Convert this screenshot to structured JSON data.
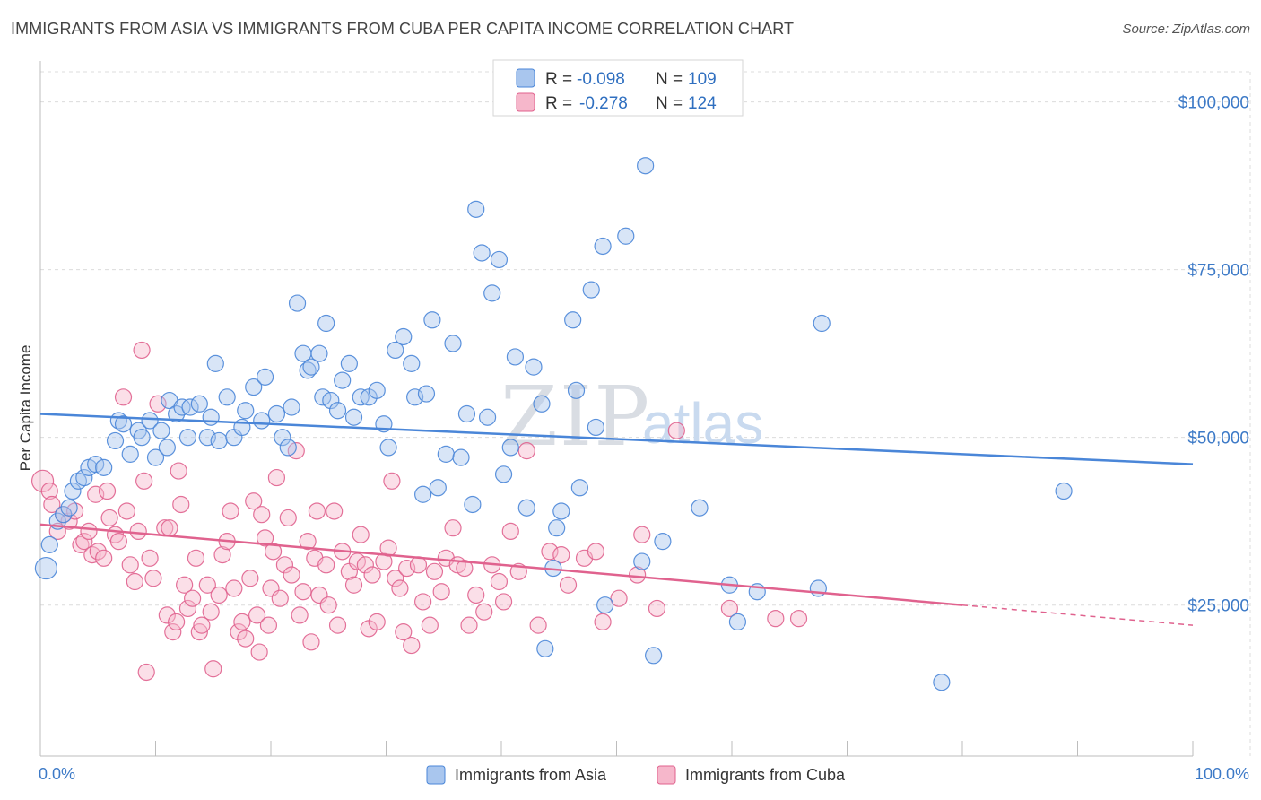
{
  "title": "IMMIGRANTS FROM ASIA VS IMMIGRANTS FROM CUBA PER CAPITA INCOME CORRELATION CHART",
  "source": "Source: ZipAtlas.com",
  "watermark": {
    "zip": "ZIP",
    "atlas": "atlas"
  },
  "colors": {
    "asia": "#4a86d8",
    "asia_fill": "#a9c6ee",
    "cuba": "#e0628e",
    "cuba_fill": "#f6b7cb",
    "tick_label": "#3d7ac7",
    "grid": "#dcdcdc"
  },
  "legend": {
    "rows": [
      {
        "r_label": "R =",
        "r_value": "-0.098",
        "n_label": "N =",
        "n_value": "109"
      },
      {
        "r_label": "R =",
        "r_value": "-0.278",
        "n_label": "N =",
        "n_value": "124"
      }
    ]
  },
  "chart_data": {
    "type": "scatter",
    "xlabel": "",
    "ylabel": "Per Capita Income",
    "x_tick_labels": [
      "0.0%",
      "100.0%"
    ],
    "y_tick_labels": [
      "$25,000",
      "$50,000",
      "$75,000",
      "$100,000"
    ],
    "y_ticks": [
      25000,
      50000,
      75000,
      100000
    ],
    "xlim": [
      0,
      100
    ],
    "ylim": [
      2500,
      104500
    ],
    "grid": true,
    "legend_position": "bottom",
    "series": [
      {
        "name": "Immigrants from Asia",
        "trend": {
          "x0": 0,
          "y0": 53500,
          "x1": 100,
          "y1": 46000
        },
        "points": [
          [
            0.5,
            30500
          ],
          [
            0.8,
            34000
          ],
          [
            1.5,
            37500
          ],
          [
            2,
            38500
          ],
          [
            2.5,
            39500
          ],
          [
            2.8,
            42000
          ],
          [
            3.3,
            43500
          ],
          [
            3.8,
            44000
          ],
          [
            4.2,
            45500
          ],
          [
            4.8,
            46000
          ],
          [
            5.5,
            45500
          ],
          [
            6.5,
            49500
          ],
          [
            6.8,
            52500
          ],
          [
            7.2,
            52000
          ],
          [
            7.8,
            47500
          ],
          [
            8.5,
            51000
          ],
          [
            8.8,
            50000
          ],
          [
            9.5,
            52500
          ],
          [
            10,
            47000
          ],
          [
            10.5,
            51000
          ],
          [
            11,
            48500
          ],
          [
            11.2,
            55500
          ],
          [
            11.8,
            53500
          ],
          [
            12.3,
            54500
          ],
          [
            12.8,
            50000
          ],
          [
            13,
            54500
          ],
          [
            13.8,
            55000
          ],
          [
            14.5,
            50000
          ],
          [
            14.8,
            53000
          ],
          [
            15.2,
            61000
          ],
          [
            15.5,
            49500
          ],
          [
            16.2,
            56000
          ],
          [
            16.8,
            50000
          ],
          [
            17.5,
            51500
          ],
          [
            17.8,
            54000
          ],
          [
            18.5,
            57500
          ],
          [
            19.2,
            52500
          ],
          [
            19.5,
            59000
          ],
          [
            20.5,
            53500
          ],
          [
            21,
            50000
          ],
          [
            21.5,
            48500
          ],
          [
            21.8,
            54500
          ],
          [
            22.3,
            70000
          ],
          [
            22.8,
            62500
          ],
          [
            23.2,
            60000
          ],
          [
            23.5,
            60500
          ],
          [
            24.2,
            62500
          ],
          [
            24.8,
            67000
          ],
          [
            24.5,
            56000
          ],
          [
            25.2,
            55500
          ],
          [
            25.8,
            54000
          ],
          [
            26.2,
            58500
          ],
          [
            26.8,
            61000
          ],
          [
            27.2,
            53000
          ],
          [
            27.8,
            56000
          ],
          [
            28.5,
            56000
          ],
          [
            29.2,
            57000
          ],
          [
            29.8,
            52000
          ],
          [
            30.2,
            48500
          ],
          [
            30.8,
            63000
          ],
          [
            31.5,
            65000
          ],
          [
            32.2,
            61000
          ],
          [
            32.5,
            56000
          ],
          [
            33.2,
            41500
          ],
          [
            33.5,
            56500
          ],
          [
            34,
            67500
          ],
          [
            34.5,
            42500
          ],
          [
            35.2,
            47500
          ],
          [
            35.8,
            64000
          ],
          [
            36.5,
            47000
          ],
          [
            37,
            53500
          ],
          [
            37.5,
            40000
          ],
          [
            37.8,
            84000
          ],
          [
            38.3,
            77500
          ],
          [
            38.8,
            53000
          ],
          [
            39.2,
            71500
          ],
          [
            39.8,
            76500
          ],
          [
            40.2,
            44500
          ],
          [
            40.8,
            48500
          ],
          [
            41.2,
            62000
          ],
          [
            42.2,
            39500
          ],
          [
            42.8,
            60500
          ],
          [
            43.5,
            55000
          ],
          [
            43.8,
            18500
          ],
          [
            44.5,
            30500
          ],
          [
            44.8,
            36500
          ],
          [
            45.2,
            39000
          ],
          [
            46.2,
            67500
          ],
          [
            46.5,
            57000
          ],
          [
            46.8,
            42500
          ],
          [
            47.8,
            72000
          ],
          [
            48.2,
            51500
          ],
          [
            48.8,
            78500
          ],
          [
            49,
            25000
          ],
          [
            50.8,
            80000
          ],
          [
            52.2,
            31500
          ],
          [
            52.5,
            90500
          ],
          [
            53.2,
            17500
          ],
          [
            54,
            34500
          ],
          [
            57.2,
            39500
          ],
          [
            59.8,
            28000
          ],
          [
            60.5,
            22500
          ],
          [
            62.2,
            27000
          ],
          [
            67.5,
            27500
          ],
          [
            67.8,
            67000
          ],
          [
            78.2,
            13500
          ],
          [
            88.8,
            42000
          ]
        ]
      },
      {
        "name": "Immigrants from Cuba",
        "trend": {
          "x0": 0,
          "y0": 37000,
          "x1": 80,
          "y1": 25000,
          "dash_to_x": 100,
          "dash_to_y": 22000
        },
        "points": [
          [
            0.2,
            43500
          ],
          [
            0.8,
            42000
          ],
          [
            1,
            40000
          ],
          [
            1.5,
            36000
          ],
          [
            2,
            38500
          ],
          [
            2.5,
            37500
          ],
          [
            3,
            39000
          ],
          [
            3.5,
            34000
          ],
          [
            3.8,
            34500
          ],
          [
            4.2,
            36000
          ],
          [
            4.5,
            32500
          ],
          [
            4.8,
            41500
          ],
          [
            5,
            33000
          ],
          [
            5.5,
            32000
          ],
          [
            5.8,
            42000
          ],
          [
            6,
            38000
          ],
          [
            6.5,
            35500
          ],
          [
            6.8,
            34500
          ],
          [
            7.2,
            56000
          ],
          [
            7.5,
            39000
          ],
          [
            7.8,
            31000
          ],
          [
            8.2,
            28500
          ],
          [
            8.5,
            36000
          ],
          [
            8.8,
            63000
          ],
          [
            9,
            43500
          ],
          [
            9.2,
            15000
          ],
          [
            9.5,
            32000
          ],
          [
            9.8,
            29000
          ],
          [
            10.2,
            55000
          ],
          [
            10.8,
            36500
          ],
          [
            11,
            23500
          ],
          [
            11.2,
            36500
          ],
          [
            11.5,
            21000
          ],
          [
            11.8,
            22500
          ],
          [
            12,
            45000
          ],
          [
            12.2,
            40000
          ],
          [
            12.5,
            28000
          ],
          [
            12.8,
            24500
          ],
          [
            13.2,
            26000
          ],
          [
            13.5,
            32000
          ],
          [
            13.8,
            21000
          ],
          [
            14,
            22000
          ],
          [
            14.5,
            28000
          ],
          [
            14.8,
            24000
          ],
          [
            15,
            15500
          ],
          [
            15.5,
            26500
          ],
          [
            15.8,
            32500
          ],
          [
            16.2,
            34500
          ],
          [
            16.5,
            39000
          ],
          [
            16.8,
            27500
          ],
          [
            17.2,
            21000
          ],
          [
            17.5,
            22500
          ],
          [
            17.8,
            20000
          ],
          [
            18.2,
            29000
          ],
          [
            18.5,
            40500
          ],
          [
            18.8,
            23500
          ],
          [
            19,
            18000
          ],
          [
            19.2,
            38500
          ],
          [
            19.5,
            35000
          ],
          [
            19.8,
            22000
          ],
          [
            20,
            27500
          ],
          [
            20.2,
            33000
          ],
          [
            20.5,
            44000
          ],
          [
            20.8,
            26000
          ],
          [
            21.2,
            31000
          ],
          [
            21.5,
            38000
          ],
          [
            21.8,
            29500
          ],
          [
            22.2,
            48000
          ],
          [
            22.5,
            23500
          ],
          [
            22.8,
            27000
          ],
          [
            23.2,
            34500
          ],
          [
            23.5,
            19500
          ],
          [
            23.8,
            32000
          ],
          [
            24,
            39000
          ],
          [
            24.2,
            26500
          ],
          [
            24.8,
            31000
          ],
          [
            25,
            25000
          ],
          [
            25.5,
            39000
          ],
          [
            25.8,
            22000
          ],
          [
            26.2,
            33000
          ],
          [
            26.8,
            30000
          ],
          [
            27.2,
            28000
          ],
          [
            27.5,
            31500
          ],
          [
            27.8,
            35500
          ],
          [
            28.2,
            31000
          ],
          [
            28.5,
            21500
          ],
          [
            28.8,
            29500
          ],
          [
            29.2,
            22500
          ],
          [
            29.8,
            31500
          ],
          [
            30.2,
            33500
          ],
          [
            30.5,
            43500
          ],
          [
            30.8,
            29000
          ],
          [
            31.2,
            27500
          ],
          [
            31.5,
            21000
          ],
          [
            31.8,
            30500
          ],
          [
            32.2,
            19000
          ],
          [
            32.8,
            31000
          ],
          [
            33.2,
            25500
          ],
          [
            33.8,
            22000
          ],
          [
            34.2,
            30000
          ],
          [
            34.8,
            27000
          ],
          [
            35.2,
            32000
          ],
          [
            35.8,
            36500
          ],
          [
            36.2,
            31000
          ],
          [
            36.8,
            30500
          ],
          [
            37.2,
            22000
          ],
          [
            37.8,
            26500
          ],
          [
            38.5,
            24000
          ],
          [
            39.2,
            31000
          ],
          [
            39.8,
            28500
          ],
          [
            40.2,
            25500
          ],
          [
            40.8,
            36000
          ],
          [
            41.5,
            30000
          ],
          [
            42.2,
            48000
          ],
          [
            43.2,
            22000
          ],
          [
            44.2,
            33000
          ],
          [
            45.2,
            32500
          ],
          [
            45.8,
            28000
          ],
          [
            47.2,
            32000
          ],
          [
            48.2,
            33000
          ],
          [
            48.8,
            22500
          ],
          [
            50.2,
            26000
          ],
          [
            51.8,
            29500
          ],
          [
            52.2,
            35500
          ],
          [
            53.5,
            24500
          ],
          [
            55.2,
            51000
          ],
          [
            59.8,
            24500
          ],
          [
            63.8,
            23000
          ],
          [
            65.8,
            23000
          ]
        ]
      }
    ]
  },
  "bottom_legend": {
    "items": [
      "Immigrants from Asia",
      "Immigrants from Cuba"
    ]
  }
}
